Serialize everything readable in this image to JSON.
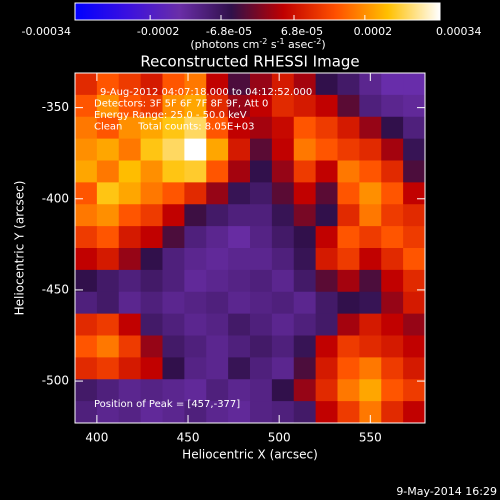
{
  "chart_data": {
    "type": "heatmap",
    "title": "Reconstructed RHESSI Image",
    "xlabel": "Heliocentric X (arcsec)",
    "ylabel": "Heliocentric Y (arcsec)",
    "colorbar_label": [
      "(photons cm",
      "-2",
      " s",
      "-1",
      " asec",
      "-2",
      ")"
    ],
    "colorbar_lim": [
      -0.00034,
      0.00034
    ],
    "colorbar_ticks": [
      -0.00034,
      -0.0002,
      {
        "value": -6.8e-05,
        "label": "-6.8e-05"
      },
      {
        "value": 6.8e-05,
        "label": "6.8e-05"
      },
      0.0002,
      0.00034
    ],
    "colormap": [
      "#0000ff",
      "#3a10e0",
      "#6a2ea8",
      "#30104a",
      "#c00000",
      "#ff5000",
      "#ffc000",
      "#ffffff"
    ],
    "annotations": [
      "9-Aug-2012 04:07:18.000 to 04:12:52.000",
      "Detectors: 3F 5F 6F 7F 8F 9F, Att 0",
      "Energy Range: 25.0 - 50.0 keV",
      "Clean     Total counts: 8.05E+03"
    ],
    "peak_label": "Position of Peak = [457,-377]",
    "footer": "9-May-2014 16:29",
    "xlim": [
      388,
      580
    ],
    "ylim": [
      -523,
      -331
    ],
    "xticks": [
      400,
      450,
      500,
      550
    ],
    "yticks": [
      -350,
      -400,
      -450,
      -500
    ],
    "values": [
      [
        0.0001,
        0.00015,
        0.00012,
        8e-05,
        0.00015,
        0.00018,
        5e-05,
        -3e-05,
        2e-05,
        8e-05,
        3e-05,
        -5e-05,
        -8e-05,
        -0.00012,
        -0.00015,
        -0.00015
      ],
      [
        0.00015,
        0.0002,
        0.00015,
        0.00012,
        0.0002,
        0.00022,
        0.0001,
        2e-05,
        5e-05,
        0.0001,
        8e-05,
        5e-05,
        -2e-05,
        -0.0001,
        -0.00012,
        -0.00013
      ],
      [
        0.00018,
        0.00015,
        0.0002,
        0.00022,
        0.00025,
        0.00028,
        0.00015,
        5e-05,
        3e-05,
        6e-05,
        0.00015,
        0.00012,
        8e-05,
        2e-05,
        -5e-05,
        -0.0001
      ],
      [
        0.0002,
        0.00022,
        0.00018,
        0.00025,
        0.00028,
        0.00034,
        0.00022,
        8e-05,
        -2e-05,
        5e-05,
        0.00018,
        0.00015,
        0.00012,
        0.0001,
        3e-05,
        -6e-05
      ],
      [
        0.00022,
        0.00018,
        0.00024,
        0.0002,
        0.00025,
        0.00026,
        0.00015,
        3e-05,
        -5e-05,
        2e-05,
        0.00012,
        5e-05,
        0.00018,
        0.00015,
        0.0001,
        -3e-05
      ],
      [
        0.00015,
        0.00025,
        0.00022,
        0.00018,
        0.00015,
        0.0001,
        2e-05,
        -6e-05,
        -8e-05,
        -2e-05,
        5e-05,
        -2e-05,
        0.00015,
        0.0002,
        0.00015,
        5e-05
      ],
      [
        0.00018,
        0.0002,
        0.00015,
        0.00012,
        5e-05,
        -4e-05,
        -8e-05,
        -0.0001,
        -0.0001,
        -6e-05,
        0,
        -5e-05,
        0.0001,
        0.00018,
        0.00012,
        0.0001
      ],
      [
        0.00012,
        0.00015,
        8e-05,
        5e-05,
        -3e-05,
        -0.0001,
        -0.00012,
        -0.00014,
        -0.00011,
        -8e-05,
        -5e-05,
        5e-05,
        0.00015,
        0.00012,
        0.00015,
        0.00012
      ],
      [
        5e-05,
        8e-05,
        2e-05,
        -5e-05,
        -0.0001,
        -0.00012,
        -0.00013,
        -0.00012,
        -0.00012,
        -0.0001,
        -6e-05,
        8e-05,
        0.00012,
        5e-05,
        0.0001,
        0.00015
      ],
      [
        -5e-05,
        -8e-05,
        -0.0001,
        -8e-05,
        -0.0001,
        -0.00013,
        -0.00012,
        -0.00011,
        -0.0001,
        -0.00012,
        -8e-05,
        -2e-05,
        3e-05,
        -3e-05,
        5e-05,
        0.0001
      ],
      [
        -0.0001,
        -8e-05,
        -0.00012,
        -0.0001,
        -0.00012,
        -0.00011,
        -0.0001,
        -0.00012,
        -0.00011,
        -0.0001,
        -0.00012,
        -8e-05,
        -5e-05,
        -6e-05,
        2e-05,
        8e-05
      ],
      [
        0.0001,
        0.00012,
        5e-05,
        -8e-05,
        -0.0001,
        -0.00012,
        -0.00011,
        -8e-05,
        -0.0001,
        -0.00012,
        -0.0001,
        -8e-05,
        3e-05,
        8e-05,
        5e-05,
        2e-05
      ],
      [
        0.00015,
        0.00018,
        0.00012,
        2e-05,
        -8e-05,
        -0.0001,
        -0.00012,
        -0.0001,
        -8e-05,
        -0.0001,
        -6e-05,
        5e-05,
        0.00012,
        0.0001,
        8e-05,
        5e-05
      ],
      [
        0.0001,
        0.00012,
        8e-05,
        5e-05,
        -5e-05,
        -0.00011,
        -0.00012,
        -6e-05,
        -0.0001,
        -0.00012,
        -3e-05,
        8e-05,
        0.00015,
        0.00018,
        0.00012,
        8e-05
      ],
      [
        -8e-05,
        -0.0001,
        -0.00012,
        -0.00011,
        -0.00012,
        -0.00013,
        -0.0001,
        -0.00012,
        -0.00011,
        -5e-05,
        2e-05,
        0.0001,
        0.00018,
        0.00022,
        0.00015,
        0.00012
      ],
      [
        -0.0001,
        -0.00012,
        -0.00011,
        -0.00013,
        -0.00012,
        -0.0001,
        -0.00012,
        -0.00013,
        -0.00011,
        -0.0001,
        -8e-05,
        5e-05,
        0.00012,
        0.00018,
        0.0001,
        5e-05
      ]
    ]
  }
}
